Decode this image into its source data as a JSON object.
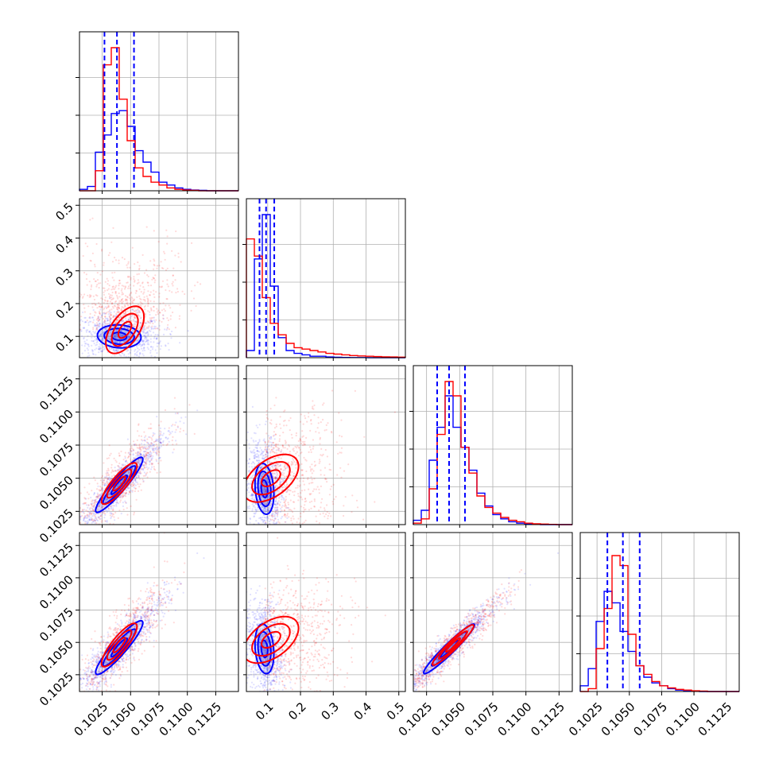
{
  "chart_data": {
    "type": "corner",
    "grid": true,
    "colors": {
      "blue": "#0000ff",
      "red": "#ff0000",
      "grid": "#b0b0b0",
      "axis": "#000000"
    },
    "series": [
      {
        "color": "#0000ff",
        "style": "histogram + filled contours + scatter"
      },
      {
        "color": "#ff0000",
        "style": "histogram + contours + scatter"
      }
    ],
    "x_tick_labels": [
      [
        "0.1025",
        "0.1050",
        "0.1075",
        "0.1100",
        "0.1125"
      ],
      [
        "0.1",
        "0.2",
        "0.3",
        "0.4",
        "0.5"
      ],
      [
        "0.1025",
        "0.1050",
        "0.1075",
        "0.1100",
        "0.1125"
      ],
      [
        "0.1025",
        "0.1050",
        "0.1075",
        "0.1100",
        "0.1125"
      ]
    ],
    "y_tick_labels": [
      [],
      [
        "0.1",
        "0.2",
        "0.3",
        "0.4",
        "0.5"
      ],
      [
        "0.1025",
        "0.1050",
        "0.1075",
        "0.1100",
        "0.1125"
      ],
      [
        "0.1025",
        "0.1050",
        "0.1075",
        "0.1100",
        "0.1125"
      ]
    ],
    "params": [
      {
        "range": [
          0.1005,
          0.1145
        ],
        "ticks": [
          0.1025,
          0.105,
          0.1075,
          0.11,
          0.1125
        ],
        "quantiles": [
          0.1027,
          0.1038,
          0.1053
        ]
      },
      {
        "range": [
          0.035,
          0.52
        ],
        "ticks": [
          0.1,
          0.2,
          0.3,
          0.4,
          0.5
        ],
        "quantiles": [
          0.075,
          0.095,
          0.12
        ]
      },
      {
        "range": [
          0.1015,
          0.1135
        ],
        "ticks": [
          0.1025,
          0.105,
          0.1075,
          0.11,
          0.1125
        ],
        "quantiles": [
          0.1033,
          0.1042,
          0.1054
        ]
      },
      {
        "range": [
          0.1012,
          0.1135
        ],
        "ticks": [
          0.1025,
          0.105,
          0.1075,
          0.11,
          0.1125
        ],
        "quantiles": [
          0.1033,
          0.1045,
          0.1058
        ]
      }
    ],
    "histograms": [
      {
        "bins": [
          0.1005,
          0.1012,
          0.1019,
          0.1026,
          0.1033,
          0.104,
          0.1047,
          0.1054,
          0.1061,
          0.1068,
          0.1075,
          0.1082,
          0.1089,
          0.1096,
          0.1103,
          0.111,
          0.1117,
          0.1124,
          0.1131,
          0.1138,
          0.1145
        ],
        "blue": [
          0.01,
          0.03,
          0.27,
          0.39,
          0.54,
          0.56,
          0.45,
          0.28,
          0.2,
          0.13,
          0.06,
          0.04,
          0.02,
          0.01,
          0.005,
          0.003,
          0,
          0,
          0,
          0
        ],
        "red": [
          0,
          0,
          0.14,
          0.88,
          1.0,
          0.64,
          0.35,
          0.16,
          0.1,
          0.06,
          0.04,
          0.02,
          0.01,
          0.005,
          0.003,
          0,
          0,
          0,
          0,
          0
        ]
      },
      {
        "bins": [
          0.035,
          0.0593,
          0.0835,
          0.1078,
          0.132,
          0.1563,
          0.1805,
          0.2048,
          0.229,
          0.2533,
          0.2775,
          0.3018,
          0.326,
          0.3503,
          0.3745,
          0.3988,
          0.423,
          0.4473,
          0.4715,
          0.4958,
          0.52
        ],
        "blue": [
          0.05,
          0.69,
          1.0,
          0.5,
          0.14,
          0.05,
          0.03,
          0.02,
          0.01,
          0.01,
          0.005,
          0.003,
          0.002,
          0.001,
          0.001,
          0,
          0,
          0,
          0,
          0
        ],
        "red": [
          0.83,
          0.71,
          0.42,
          0.24,
          0.16,
          0.1,
          0.07,
          0.06,
          0.05,
          0.04,
          0.03,
          0.025,
          0.02,
          0.015,
          0.012,
          0.01,
          0.008,
          0.006,
          0.005,
          0.004
        ]
      },
      {
        "bins": [
          0.1015,
          0.1021,
          0.1027,
          0.1033,
          0.1039,
          0.1045,
          0.1051,
          0.1057,
          0.1063,
          0.1069,
          0.1075,
          0.1081,
          0.1087,
          0.1093,
          0.1099,
          0.1105,
          0.1111,
          0.1117,
          0.1123,
          0.1129,
          0.1135
        ],
        "blue": [
          0.03,
          0.1,
          0.45,
          0.68,
          0.9,
          0.68,
          0.54,
          0.38,
          0.22,
          0.13,
          0.07,
          0.04,
          0.02,
          0.01,
          0.005,
          0.003,
          0,
          0,
          0,
          0
        ],
        "red": [
          0.01,
          0.04,
          0.25,
          0.63,
          1.0,
          0.9,
          0.54,
          0.36,
          0.2,
          0.12,
          0.08,
          0.05,
          0.03,
          0.02,
          0.01,
          0.006,
          0.004,
          0.002,
          0,
          0
        ]
      },
      {
        "bins": [
          0.1012,
          0.10182,
          0.10243,
          0.10305,
          0.10366,
          0.10428,
          0.10489,
          0.10551,
          0.10612,
          0.10674,
          0.10735,
          0.10797,
          0.10858,
          0.1092,
          0.10981,
          0.11043,
          0.11104,
          0.11166,
          0.11227,
          0.11289,
          0.1135
        ],
        "blue": [
          0.04,
          0.16,
          0.49,
          0.7,
          0.62,
          0.42,
          0.28,
          0.18,
          0.1,
          0.06,
          0.04,
          0.02,
          0.01,
          0.005,
          0.003,
          0,
          0,
          0,
          0,
          0
        ],
        "red": [
          0,
          0.02,
          0.3,
          0.58,
          0.95,
          0.88,
          0.4,
          0.18,
          0.12,
          0.07,
          0.04,
          0.025,
          0.015,
          0.01,
          0.005,
          0.003,
          0,
          0,
          0,
          0
        ]
      }
    ],
    "pairs": [
      {
        "row": 1,
        "col": 0,
        "blue": {
          "mean": [
            0.104,
            0.1
          ],
          "sd": [
            0.0012,
            0.022
          ],
          "rho": -0.1
        },
        "red": {
          "mean": [
            0.1045,
            0.12
          ],
          "sd": [
            0.0014,
            0.06
          ],
          "rho": 0.55
        }
      },
      {
        "row": 2,
        "col": 0,
        "blue": {
          "mean": [
            0.104,
            0.1045
          ],
          "sd": [
            0.0013,
            0.0013
          ],
          "rho": 0.93
        },
        "red": {
          "mean": [
            0.104,
            0.1046
          ],
          "sd": [
            0.0013,
            0.0013
          ],
          "rho": 0.85
        }
      },
      {
        "row": 2,
        "col": 1,
        "blue": {
          "mean": [
            0.09,
            0.1042
          ],
          "sd": [
            0.018,
            0.0012
          ],
          "rho": -0.2
        },
        "red": {
          "mean": [
            0.11,
            0.105
          ],
          "sd": [
            0.07,
            0.0015
          ],
          "rho": 0.5
        }
      },
      {
        "row": 3,
        "col": 0,
        "blue": {
          "mean": [
            0.104,
            0.1046
          ],
          "sd": [
            0.0013,
            0.0013
          ],
          "rho": 0.92
        },
        "red": {
          "mean": [
            0.104,
            0.1048
          ],
          "sd": [
            0.0013,
            0.0014
          ],
          "rho": 0.85
        }
      },
      {
        "row": 3,
        "col": 1,
        "blue": {
          "mean": [
            0.09,
            0.1045
          ],
          "sd": [
            0.018,
            0.0012
          ],
          "rho": -0.2
        },
        "red": {
          "mean": [
            0.11,
            0.1052
          ],
          "sd": [
            0.07,
            0.0015
          ],
          "rho": 0.5
        }
      },
      {
        "row": 3,
        "col": 2,
        "blue": {
          "mean": [
            0.1042,
            0.1045
          ],
          "sd": [
            0.0012,
            0.0012
          ],
          "rho": 0.96
        },
        "red": {
          "mean": [
            0.1045,
            0.1048
          ],
          "sd": [
            0.0013,
            0.0013
          ],
          "rho": 0.95
        }
      }
    ]
  }
}
